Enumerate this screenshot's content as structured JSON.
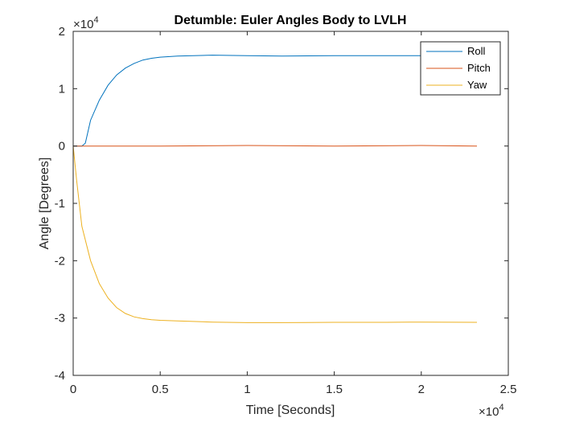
{
  "chart_data": {
    "type": "line",
    "title": "Detumble: Euler Angles Body to LVLH",
    "xlabel": "Time [Seconds]",
    "ylabel": "Angle [Degrees]",
    "x_multiplier_label": "×10",
    "x_multiplier_exp": "4",
    "y_multiplier_label": "×10",
    "y_multiplier_exp": "4",
    "xlim": [
      0,
      2.5
    ],
    "ylim": [
      -4,
      2
    ],
    "xticks": [
      "0",
      "0.5",
      "1",
      "1.5",
      "2",
      "2.5"
    ],
    "yticks": [
      "-4",
      "-3",
      "-2",
      "-1",
      "0",
      "1",
      "2"
    ],
    "xtick_values": [
      0,
      0.5,
      1,
      1.5,
      2,
      2.5
    ],
    "ytick_values": [
      -4,
      -3,
      -2,
      -1,
      0,
      1,
      2
    ],
    "grid": false,
    "legend_position": "top-right",
    "series": [
      {
        "name": "Roll",
        "color": "#0072BD",
        "x": [
          0,
          0.05,
          0.07,
          0.1,
          0.15,
          0.2,
          0.25,
          0.3,
          0.35,
          0.4,
          0.45,
          0.5,
          0.6,
          0.8,
          1.0,
          1.2,
          1.5,
          1.8,
          2.0,
          2.2,
          2.32
        ],
        "y": [
          0,
          0,
          0.05,
          0.45,
          0.8,
          1.06,
          1.24,
          1.36,
          1.44,
          1.5,
          1.53,
          1.55,
          1.57,
          1.585,
          1.575,
          1.57,
          1.575,
          1.575,
          1.575,
          1.575,
          1.575
        ]
      },
      {
        "name": "Pitch",
        "color": "#D95319",
        "x": [
          0,
          0.5,
          1.0,
          1.5,
          2.0,
          2.32
        ],
        "y": [
          0,
          0,
          0.01,
          0,
          0.01,
          0
        ]
      },
      {
        "name": "Yaw",
        "color": "#EDB120",
        "x": [
          0,
          0.02,
          0.05,
          0.1,
          0.15,
          0.2,
          0.25,
          0.3,
          0.35,
          0.4,
          0.45,
          0.5,
          0.6,
          0.8,
          1.0,
          1.2,
          1.5,
          1.8,
          2.0,
          2.32
        ],
        "y": [
          0,
          -0.6,
          -1.4,
          -2.0,
          -2.4,
          -2.65,
          -2.82,
          -2.92,
          -2.98,
          -3.01,
          -3.03,
          -3.04,
          -3.05,
          -3.07,
          -3.08,
          -3.08,
          -3.075,
          -3.075,
          -3.07,
          -3.075
        ]
      }
    ]
  }
}
